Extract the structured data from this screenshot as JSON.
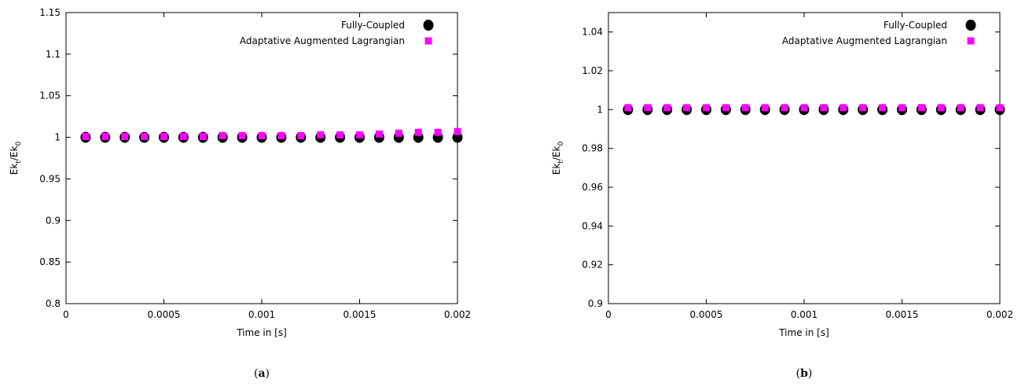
{
  "chart_data": [
    {
      "type": "scatter",
      "panel": "a",
      "caption_letter": "a",
      "xlabel": "Time in [s]",
      "ylabel": {
        "main": "Ek",
        "sub_top": "t",
        "sep": "/Ek",
        "sub_bottom": "0"
      },
      "xlim": [
        0,
        0.002
      ],
      "ylim": [
        0.8,
        1.15
      ],
      "xticks": [
        0,
        0.0005,
        0.001,
        0.0015,
        0.002
      ],
      "xtick_labels": [
        "0",
        "0.0005",
        "0.001",
        "0.0015",
        "0.002"
      ],
      "yticks": [
        0.8,
        0.85,
        0.9,
        0.95,
        1,
        1.05,
        1.1,
        1.15
      ],
      "ytick_labels": [
        "0.8",
        "0.85",
        "0.9",
        "0.95",
        "1",
        "1.05",
        "1.1",
        "1.15"
      ],
      "grid": false,
      "legend_position": "top-right",
      "x": [
        0.0001,
        0.0002,
        0.0003,
        0.0004,
        0.0005,
        0.0006,
        0.0007,
        0.0008,
        0.0009,
        0.001,
        0.0011,
        0.0012,
        0.0013,
        0.0014,
        0.0015,
        0.0016,
        0.0017,
        0.0018,
        0.0019,
        0.002
      ],
      "series": [
        {
          "name": "Fully-Coupled",
          "marker": "circle",
          "color": "#000000",
          "values": [
            1,
            1,
            1,
            1,
            1,
            1,
            1,
            1,
            1,
            1,
            1,
            1,
            1,
            1,
            1,
            1,
            1,
            1,
            1,
            1
          ]
        },
        {
          "name": "Adaptative Augmented Lagrangian",
          "marker": "square",
          "color": "#ff00ff",
          "values": [
            1.001,
            1.001,
            1.001,
            1.001,
            1.001,
            1.001,
            1.001,
            1.002,
            1.002,
            1.002,
            1.002,
            1.002,
            1.003,
            1.003,
            1.003,
            1.004,
            1.005,
            1.006,
            1.006,
            1.007
          ]
        }
      ]
    },
    {
      "type": "scatter",
      "panel": "b",
      "caption_letter": "b",
      "xlabel": "Time in [s]",
      "ylabel": {
        "main": "Ek",
        "sub_top": "t",
        "sep": "/Ek",
        "sub_bottom": "0"
      },
      "xlim": [
        0,
        0.002
      ],
      "ylim": [
        0.9,
        1.05
      ],
      "xticks": [
        0,
        0.0005,
        0.001,
        0.0015,
        0.002
      ],
      "xtick_labels": [
        "0",
        "0.0005",
        "0.001",
        "0.0015",
        "0.002"
      ],
      "yticks": [
        0.9,
        0.92,
        0.94,
        0.96,
        0.98,
        1,
        1.02,
        1.04
      ],
      "ytick_labels": [
        "0.9",
        "0.92",
        "0.94",
        "0.96",
        "0.98",
        "1",
        "1.02",
        "1.04"
      ],
      "grid": false,
      "legend_position": "top-right",
      "x": [
        0.0001,
        0.0002,
        0.0003,
        0.0004,
        0.0005,
        0.0006,
        0.0007,
        0.0008,
        0.0009,
        0.001,
        0.0011,
        0.0012,
        0.0013,
        0.0014,
        0.0015,
        0.0016,
        0.0017,
        0.0018,
        0.0019,
        0.002
      ],
      "series": [
        {
          "name": "Fully-Coupled",
          "marker": "circle",
          "color": "#000000",
          "values": [
            1,
            1,
            1,
            1,
            1,
            1,
            1,
            1,
            1,
            1,
            1,
            1,
            1,
            1,
            1,
            1,
            1,
            1,
            1,
            1
          ]
        },
        {
          "name": "Adaptative Augmented Lagrangian",
          "marker": "square",
          "color": "#ff00ff",
          "values": [
            1.001,
            1.001,
            1.001,
            1.001,
            1.001,
            1.001,
            1.001,
            1.001,
            1.001,
            1.001,
            1.001,
            1.001,
            1.001,
            1.001,
            1.001,
            1.001,
            1.001,
            1.001,
            1.001,
            1.001
          ]
        }
      ]
    }
  ]
}
